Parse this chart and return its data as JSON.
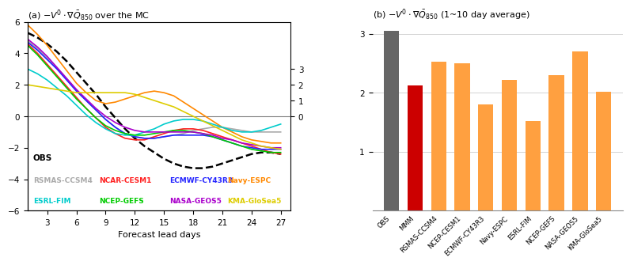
{
  "title_a": "(a) $-V^{\\prime} \\cdot \\nabla\\bar{Q}_{850}$ over the MC",
  "title_b": "(b) $-V^{\\prime} \\cdot \\nabla\\bar{Q}_{850}$ (1~10 day average)",
  "xlabel_a": "Forecast lead days",
  "xlim_a": [
    1,
    28
  ],
  "ylim_a": [
    -6,
    6
  ],
  "xticks_a": [
    3,
    6,
    9,
    12,
    15,
    18,
    21,
    24,
    27
  ],
  "yticks_a": [
    -6,
    -4,
    -2,
    0,
    2,
    4,
    6
  ],
  "lines": {
    "OBS": {
      "color": "black",
      "linestyle": "--",
      "linewidth": 1.8,
      "x": [
        1,
        2,
        3,
        4,
        5,
        6,
        7,
        8,
        9,
        10,
        11,
        12,
        13,
        14,
        15,
        16,
        17,
        18,
        19,
        20,
        21,
        22,
        23,
        24,
        25,
        26,
        27
      ],
      "y": [
        5.3,
        5.0,
        4.6,
        4.1,
        3.5,
        2.8,
        2.1,
        1.4,
        0.6,
        -0.1,
        -0.8,
        -1.4,
        -1.9,
        -2.3,
        -2.7,
        -3.0,
        -3.2,
        -3.3,
        -3.3,
        -3.2,
        -3.0,
        -2.8,
        -2.6,
        -2.4,
        -2.3,
        -2.3,
        -2.4
      ]
    },
    "RSMAS-CCSM4": {
      "color": "#aaaaaa",
      "linestyle": "-",
      "linewidth": 1.2,
      "x": [
        1,
        2,
        3,
        4,
        5,
        6,
        7,
        8,
        9,
        10,
        11,
        12,
        13,
        14,
        15,
        16,
        17,
        18,
        19,
        20,
        21,
        22,
        23,
        24,
        25,
        26,
        27
      ],
      "y": [
        4.8,
        4.3,
        3.7,
        3.1,
        2.4,
        1.7,
        1.0,
        0.4,
        -0.2,
        -0.7,
        -1.1,
        -1.3,
        -1.4,
        -1.4,
        -1.3,
        -1.2,
        -1.1,
        -0.9,
        -0.8,
        -0.7,
        -0.7,
        -0.8,
        -0.9,
        -1.0,
        -1.0,
        -1.0,
        -1.0
      ]
    },
    "NCAR-CESM1": {
      "color": "#ff2020",
      "linestyle": "-",
      "linewidth": 1.2,
      "x": [
        1,
        2,
        3,
        4,
        5,
        6,
        7,
        8,
        9,
        10,
        11,
        12,
        13,
        14,
        15,
        16,
        17,
        18,
        19,
        20,
        21,
        22,
        23,
        24,
        25,
        26,
        27
      ],
      "y": [
        4.6,
        4.0,
        3.3,
        2.6,
        1.9,
        1.2,
        0.5,
        -0.1,
        -0.7,
        -1.1,
        -1.4,
        -1.5,
        -1.5,
        -1.3,
        -1.1,
        -0.9,
        -0.8,
        -0.8,
        -0.9,
        -1.1,
        -1.3,
        -1.5,
        -1.7,
        -1.9,
        -2.1,
        -2.3,
        -2.4
      ]
    },
    "ECMWF-CY43R3": {
      "color": "#2222ff",
      "linestyle": "-",
      "linewidth": 1.2,
      "x": [
        1,
        2,
        3,
        4,
        5,
        6,
        7,
        8,
        9,
        10,
        11,
        12,
        13,
        14,
        15,
        16,
        17,
        18,
        19,
        20,
        21,
        22,
        23,
        24,
        25,
        26,
        27
      ],
      "y": [
        4.7,
        4.2,
        3.6,
        3.0,
        2.3,
        1.6,
        1.0,
        0.4,
        -0.2,
        -0.7,
        -1.1,
        -1.3,
        -1.4,
        -1.4,
        -1.3,
        -1.2,
        -1.2,
        -1.2,
        -1.2,
        -1.3,
        -1.5,
        -1.7,
        -1.9,
        -2.0,
        -2.1,
        -2.1,
        -2.1
      ]
    },
    "Navy-ESPC": {
      "color": "#ff8800",
      "linestyle": "-",
      "linewidth": 1.2,
      "x": [
        1,
        2,
        3,
        4,
        5,
        6,
        7,
        8,
        9,
        10,
        11,
        12,
        13,
        14,
        15,
        16,
        17,
        18,
        19,
        20,
        21,
        22,
        23,
        24,
        25,
        26,
        27
      ],
      "y": [
        5.8,
        5.2,
        4.5,
        3.7,
        2.9,
        2.1,
        1.5,
        1.0,
        0.8,
        0.9,
        1.1,
        1.3,
        1.5,
        1.6,
        1.5,
        1.3,
        0.9,
        0.5,
        0.1,
        -0.3,
        -0.7,
        -1.0,
        -1.3,
        -1.5,
        -1.6,
        -1.7,
        -1.7
      ]
    },
    "ESRL-FIM": {
      "color": "#00cccc",
      "linestyle": "-",
      "linewidth": 1.2,
      "x": [
        1,
        2,
        3,
        4,
        5,
        6,
        7,
        8,
        9,
        10,
        11,
        12,
        13,
        14,
        15,
        16,
        17,
        18,
        19,
        20,
        21,
        22,
        23,
        24,
        25,
        26,
        27
      ],
      "y": [
        3.0,
        2.7,
        2.3,
        1.8,
        1.3,
        0.7,
        0.1,
        -0.4,
        -0.8,
        -1.1,
        -1.2,
        -1.2,
        -1.0,
        -0.8,
        -0.5,
        -0.3,
        -0.2,
        -0.2,
        -0.3,
        -0.5,
        -0.7,
        -0.9,
        -1.0,
        -1.0,
        -0.9,
        -0.7,
        -0.5
      ]
    },
    "NCEP-GEFS": {
      "color": "#00cc00",
      "linestyle": "-",
      "linewidth": 1.2,
      "x": [
        1,
        2,
        3,
        4,
        5,
        6,
        7,
        8,
        9,
        10,
        11,
        12,
        13,
        14,
        15,
        16,
        17,
        18,
        19,
        20,
        21,
        22,
        23,
        24,
        25,
        26,
        27
      ],
      "y": [
        4.5,
        3.9,
        3.2,
        2.5,
        1.8,
        1.1,
        0.5,
        -0.1,
        -0.6,
        -0.9,
        -1.1,
        -1.2,
        -1.2,
        -1.1,
        -1.0,
        -0.9,
        -0.9,
        -1.0,
        -1.1,
        -1.3,
        -1.5,
        -1.7,
        -1.9,
        -2.1,
        -2.2,
        -2.3,
        -2.3
      ]
    },
    "NASA-GEOS5": {
      "color": "#aa00cc",
      "linestyle": "-",
      "linewidth": 1.2,
      "x": [
        1,
        2,
        3,
        4,
        5,
        6,
        7,
        8,
        9,
        10,
        11,
        12,
        13,
        14,
        15,
        16,
        17,
        18,
        19,
        20,
        21,
        22,
        23,
        24,
        25,
        26,
        27
      ],
      "y": [
        4.9,
        4.4,
        3.8,
        3.1,
        2.4,
        1.7,
        1.1,
        0.5,
        0.0,
        -0.4,
        -0.7,
        -0.9,
        -1.0,
        -1.0,
        -1.0,
        -1.0,
        -1.0,
        -1.0,
        -1.1,
        -1.2,
        -1.4,
        -1.5,
        -1.7,
        -1.8,
        -1.9,
        -2.0,
        -2.0
      ]
    },
    "KMA-GloSea5": {
      "color": "#ddcc00",
      "linestyle": "-",
      "linewidth": 1.2,
      "x": [
        1,
        2,
        3,
        4,
        5,
        6,
        7,
        8,
        9,
        10,
        11,
        12,
        13,
        14,
        15,
        16,
        17,
        18,
        19,
        20,
        21,
        22,
        23,
        24,
        25,
        26,
        27
      ],
      "y": [
        2.0,
        1.9,
        1.8,
        1.7,
        1.6,
        1.5,
        1.5,
        1.5,
        1.5,
        1.5,
        1.5,
        1.4,
        1.2,
        1.0,
        0.8,
        0.6,
        0.3,
        0.0,
        -0.3,
        -0.6,
        -0.9,
        -1.2,
        -1.5,
        -1.7,
        -1.9,
        -2.0,
        -2.1
      ]
    }
  },
  "legend_row1": [
    {
      "label": "RSMAS-CCSM4",
      "color": "#aaaaaa"
    },
    {
      "label": "NCAR-CESM1",
      "color": "#ff2020"
    },
    {
      "label": "ECMWF-CY43R3",
      "color": "#2222ff"
    },
    {
      "label": "Navy-ESPC",
      "color": "#ff8800"
    }
  ],
  "legend_row2": [
    {
      "label": "ESRL-FIM",
      "color": "#00cccc"
    },
    {
      "label": "NCEP-GEFS",
      "color": "#00cc00"
    },
    {
      "label": "NASA-GEOS5",
      "color": "#aa00cc"
    },
    {
      "label": "KMA-GloSea5",
      "color": "#ddcc00"
    }
  ],
  "bar_categories": [
    "OBS",
    "MMM",
    "RSMAS-CCSM4",
    "NCEP-CESM1",
    "ECMWF-CY43R3",
    "Navy-ESPC",
    "ESRL-FIM",
    "NCEP-GEFS",
    "NASA-GEOS5",
    "KMA-GloSea5"
  ],
  "bar_values": [
    3.05,
    2.12,
    2.52,
    2.5,
    1.8,
    2.22,
    1.52,
    2.3,
    2.7,
    2.02
  ],
  "bar_colors": [
    "#666666",
    "#cc0000",
    "#ffa040",
    "#ffa040",
    "#ffa040",
    "#ffa040",
    "#ffa040",
    "#ffa040",
    "#ffa040",
    "#ffa040"
  ],
  "bar_ylim": [
    0,
    3.2
  ],
  "bar_yticks": [
    1,
    2,
    3
  ],
  "background_color": "#ffffff"
}
